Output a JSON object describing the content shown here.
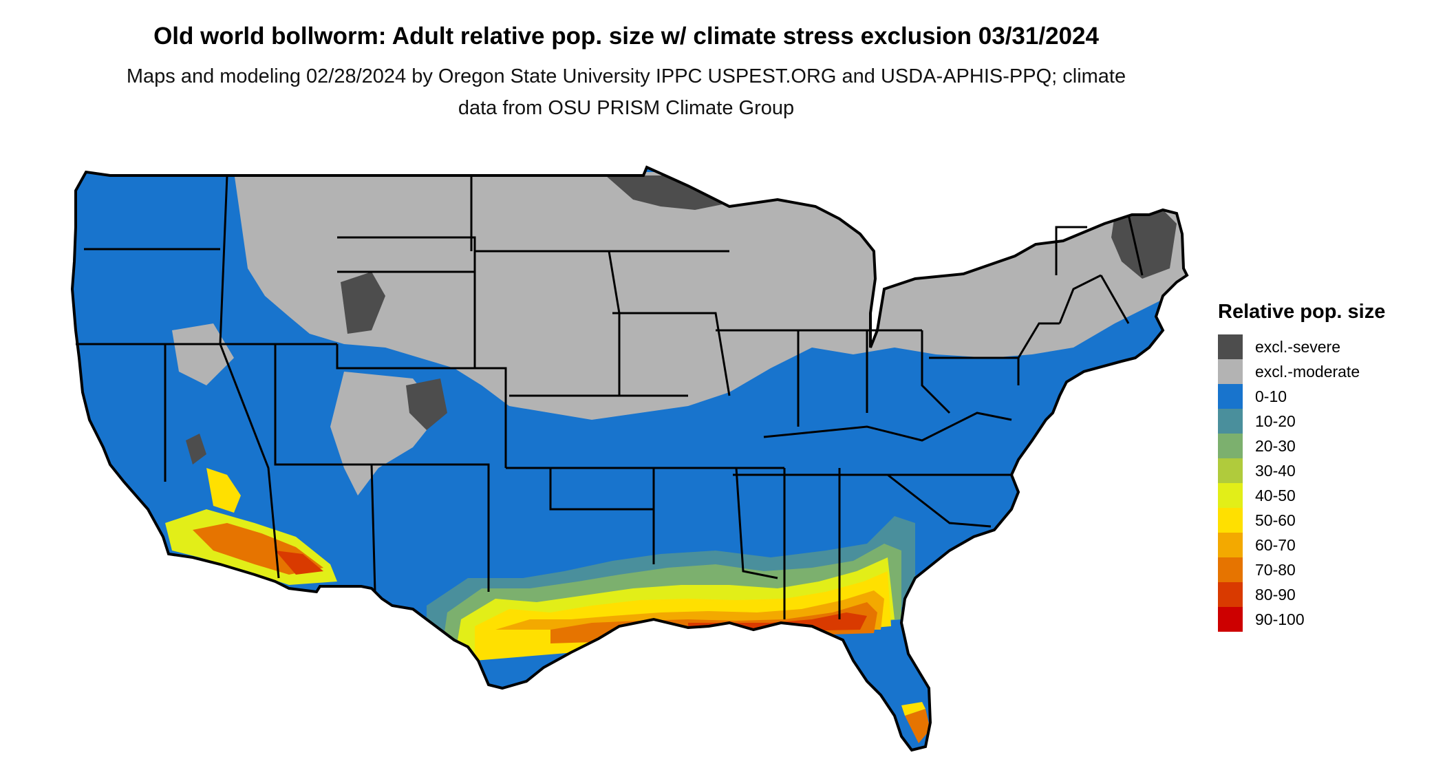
{
  "title": "Old world bollworm: Adult relative pop. size w/ climate stress exclusion 03/31/2024",
  "subtitle": "Maps and modeling 02/28/2024 by Oregon State University IPPC USPEST.ORG and USDA-APHIS-PPQ; climate data from OSU PRISM Climate Group",
  "legend": {
    "title": "Relative pop. size",
    "items": [
      {
        "label": "excl.-severe",
        "color": "#4d4d4d"
      },
      {
        "label": "excl.-moderate",
        "color": "#b3b3b3"
      },
      {
        "label": "0-10",
        "color": "#1874cd"
      },
      {
        "label": "10-20",
        "color": "#4a8f9c"
      },
      {
        "label": "20-30",
        "color": "#7cb06e"
      },
      {
        "label": "30-40",
        "color": "#b0cb3c"
      },
      {
        "label": "40-50",
        "color": "#e2ee18"
      },
      {
        "label": "50-60",
        "color": "#ffe000"
      },
      {
        "label": "60-70",
        "color": "#f3a900"
      },
      {
        "label": "70-80",
        "color": "#e67400"
      },
      {
        "label": "80-90",
        "color": "#d93a00"
      },
      {
        "label": "90-100",
        "color": "#cd0000"
      }
    ]
  }
}
